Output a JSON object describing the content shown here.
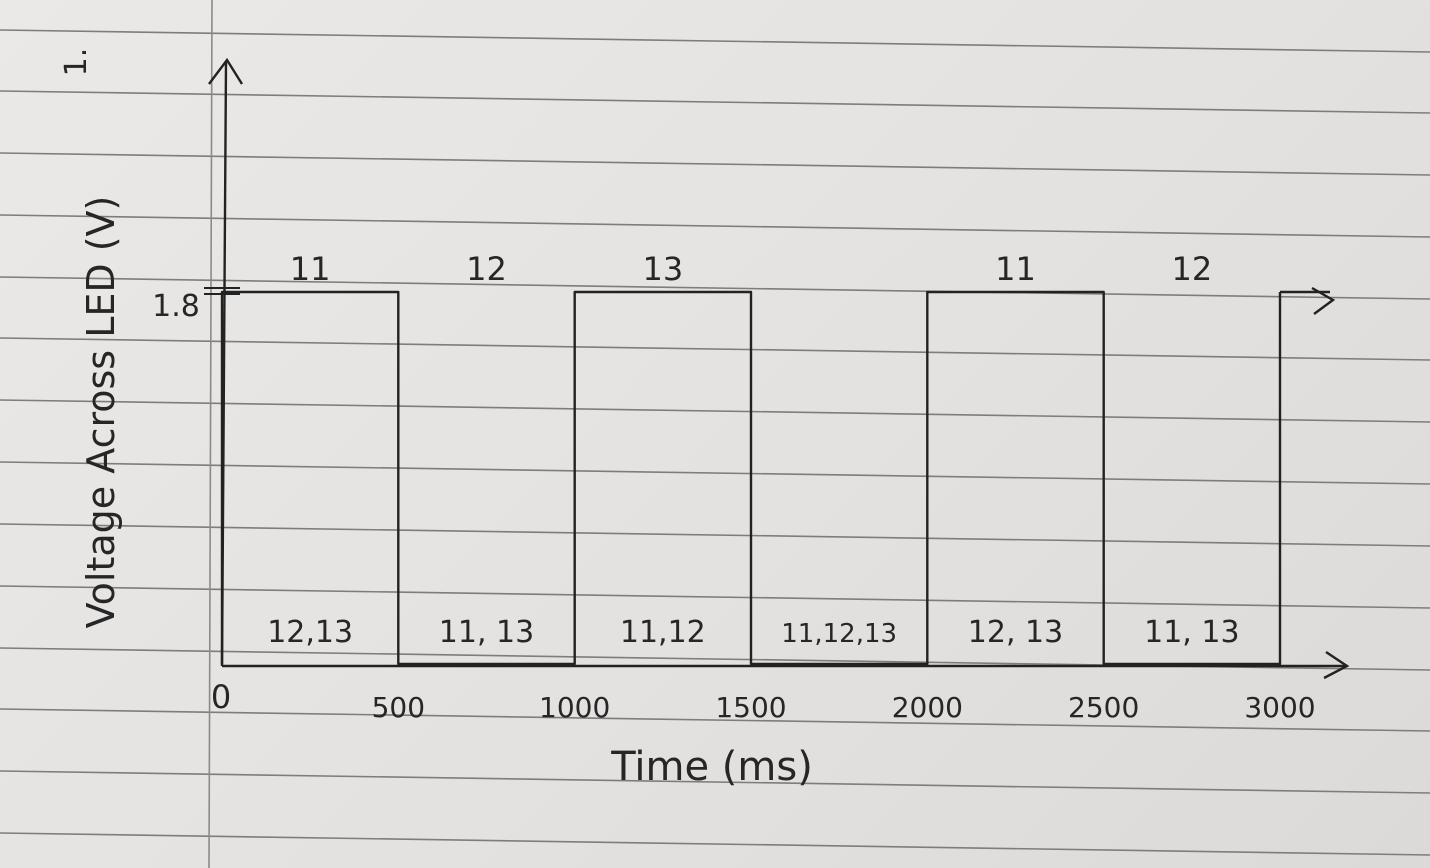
{
  "page": {
    "question_number": "1."
  },
  "chart_data": {
    "type": "line",
    "xlabel": "Time (ms)",
    "ylabel": "Voltage Across LED (V)",
    "origin_label": "0",
    "x_ticks": [
      500,
      1000,
      1500,
      2000,
      2500,
      3000
    ],
    "x_tick_labels": [
      "500",
      "1000",
      "1500",
      "2000",
      "2500",
      "3000"
    ],
    "y_ticks": [
      1.8
    ],
    "y_tick_labels": [
      "1.8"
    ],
    "xlim": [
      0,
      3000
    ],
    "ylim": [
      0,
      1.8
    ],
    "grid": false,
    "series": [
      {
        "x": [
          0,
          0,
          500,
          500,
          1000,
          1000,
          1500,
          1500,
          2000,
          2000,
          2500,
          2500,
          3000,
          3000
        ],
        "y": [
          0,
          1.8,
          1.8,
          0,
          0,
          1.8,
          1.8,
          0,
          0,
          1.8,
          1.8,
          0,
          0,
          1.8
        ]
      }
    ],
    "segments": [
      {
        "start": 0,
        "end": 500,
        "high_label": "11",
        "low_label": "12,13"
      },
      {
        "start": 500,
        "end": 1000,
        "high_label": "12",
        "low_label": "11, 13"
      },
      {
        "start": 1000,
        "end": 1500,
        "high_label": "13",
        "low_label": "11,12"
      },
      {
        "start": 1500,
        "end": 2000,
        "high_label": "",
        "low_label": "11,12,13"
      },
      {
        "start": 2000,
        "end": 2500,
        "high_label": "11",
        "low_label": "12, 13"
      },
      {
        "start": 2500,
        "end": 3000,
        "high_label": "12",
        "low_label": "11, 13"
      }
    ]
  }
}
